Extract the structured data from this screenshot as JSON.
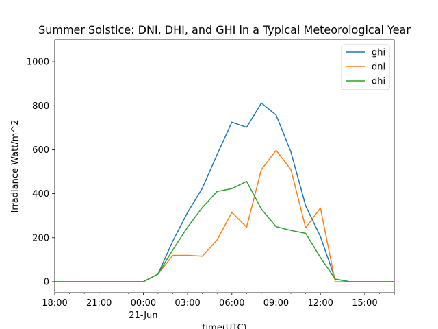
{
  "chart_data": {
    "type": "line",
    "title": "Summer Solstice: DNI, DHI, and GHI in a Typical Meteorological Year",
    "xlabel": "time(UTC)",
    "ylabel": "Irradiance Watt/m^2",
    "x": [
      "18:00",
      "19:00",
      "20:00",
      "21:00",
      "22:00",
      "23:00",
      "00:00",
      "01:00",
      "02:00",
      "03:00",
      "04:00",
      "05:00",
      "06:00",
      "07:00",
      "08:00",
      "09:00",
      "10:00",
      "11:00",
      "12:00",
      "13:00",
      "14:00",
      "15:00",
      "16:00",
      "17:00"
    ],
    "xlim": [
      "18:00",
      "17:00"
    ],
    "ylim": [
      -50,
      1100
    ],
    "x_ticks": [
      {
        "label": "18:00",
        "at": "18:00"
      },
      {
        "label": "21:00",
        "at": "21:00"
      },
      {
        "label": "00:00",
        "at": "00:00",
        "sublabel": "21-Jun"
      },
      {
        "label": "03:00",
        "at": "03:00"
      },
      {
        "label": "06:00",
        "at": "06:00"
      },
      {
        "label": "09:00",
        "at": "09:00"
      },
      {
        "label": "12:00",
        "at": "12:00"
      },
      {
        "label": "15:00",
        "at": "15:00"
      }
    ],
    "y_ticks": [
      0,
      200,
      400,
      600,
      800,
      1000
    ],
    "grid": false,
    "legend_position": "top-right",
    "series": [
      {
        "name": "ghi",
        "color": "#1f77b4",
        "values": [
          0,
          0,
          0,
          0,
          0,
          0,
          0,
          35,
          185,
          315,
          425,
          578,
          725,
          702,
          812,
          758,
          590,
          345,
          205,
          12,
          0,
          0,
          0,
          0
        ]
      },
      {
        "name": "dni",
        "color": "#ff7f0e",
        "values": [
          0,
          0,
          0,
          0,
          0,
          0,
          0,
          35,
          120,
          120,
          116,
          190,
          315,
          248,
          510,
          597,
          510,
          245,
          335,
          0,
          0,
          0,
          0,
          0
        ]
      },
      {
        "name": "dhi",
        "color": "#2ca02c",
        "values": [
          0,
          0,
          0,
          0,
          0,
          0,
          0,
          35,
          145,
          248,
          337,
          410,
          423,
          456,
          330,
          250,
          233,
          220,
          110,
          12,
          0,
          0,
          0,
          0
        ]
      }
    ]
  }
}
